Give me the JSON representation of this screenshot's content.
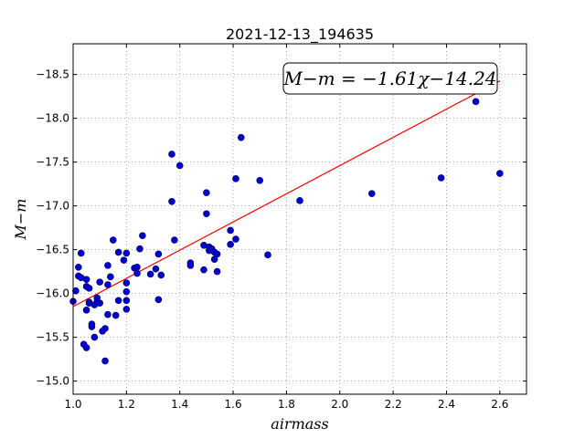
{
  "chart_data": {
    "type": "scatter",
    "title": "2021-12-13_194635",
    "xlabel": "airmass",
    "ylabel": "M−m",
    "xlim": [
      1.0,
      2.7
    ],
    "ylim": [
      -18.85,
      -14.85
    ],
    "y_inverted": true,
    "grid": true,
    "x_ticks": [
      "1.0",
      "1.2",
      "1.4",
      "1.6",
      "1.8",
      "2.0",
      "2.2",
      "2.4",
      "2.6"
    ],
    "y_ticks": [
      "−15.0",
      "−15.5",
      "−16.0",
      "−16.5",
      "−17.0",
      "−17.5",
      "−18.0",
      "−18.5"
    ],
    "annotation": "M−m = −1.61χ−14.24",
    "fit": {
      "slope": -1.61,
      "intercept": -14.24,
      "x_range": [
        1.0,
        2.6
      ],
      "color": "#ff0000"
    },
    "marker_color": "#0000cc",
    "points": [
      [
        1.0,
        -15.91
      ],
      [
        1.01,
        -16.03
      ],
      [
        1.02,
        -16.3
      ],
      [
        1.02,
        -16.2
      ],
      [
        1.03,
        -16.46
      ],
      [
        1.03,
        -16.18
      ],
      [
        1.04,
        -15.42
      ],
      [
        1.05,
        -15.38
      ],
      [
        1.05,
        -15.81
      ],
      [
        1.05,
        -16.16
      ],
      [
        1.05,
        -16.08
      ],
      [
        1.06,
        -15.9
      ],
      [
        1.06,
        -16.06
      ],
      [
        1.06,
        -15.89
      ],
      [
        1.07,
        -15.62
      ],
      [
        1.07,
        -15.65
      ],
      [
        1.08,
        -15.5
      ],
      [
        1.08,
        -15.87
      ],
      [
        1.09,
        -15.91
      ],
      [
        1.09,
        -15.95
      ],
      [
        1.1,
        -15.89
      ],
      [
        1.1,
        -16.13
      ],
      [
        1.11,
        -15.57
      ],
      [
        1.12,
        -15.6
      ],
      [
        1.12,
        -15.23
      ],
      [
        1.13,
        -15.76
      ],
      [
        1.13,
        -16.1
      ],
      [
        1.13,
        -16.32
      ],
      [
        1.14,
        -16.19
      ],
      [
        1.15,
        -16.61
      ],
      [
        1.16,
        -15.75
      ],
      [
        1.17,
        -15.92
      ],
      [
        1.17,
        -16.47
      ],
      [
        1.19,
        -16.38
      ],
      [
        1.2,
        -15.82
      ],
      [
        1.2,
        -15.92
      ],
      [
        1.2,
        -16.12
      ],
      [
        1.2,
        -16.02
      ],
      [
        1.2,
        -16.46
      ],
      [
        1.23,
        -16.29
      ],
      [
        1.24,
        -16.23
      ],
      [
        1.24,
        -16.3
      ],
      [
        1.25,
        -16.51
      ],
      [
        1.26,
        -16.66
      ],
      [
        1.29,
        -16.22
      ],
      [
        1.31,
        -16.28
      ],
      [
        1.32,
        -16.45
      ],
      [
        1.32,
        -15.93
      ],
      [
        1.33,
        -16.21
      ],
      [
        1.37,
        -17.05
      ],
      [
        1.37,
        -17.59
      ],
      [
        1.38,
        -16.61
      ],
      [
        1.4,
        -17.46
      ],
      [
        1.44,
        -16.35
      ],
      [
        1.44,
        -16.32
      ],
      [
        1.49,
        -16.55
      ],
      [
        1.49,
        -16.27
      ],
      [
        1.5,
        -16.91
      ],
      [
        1.5,
        -17.15
      ],
      [
        1.51,
        -16.49
      ],
      [
        1.51,
        -16.53
      ],
      [
        1.52,
        -16.51
      ],
      [
        1.53,
        -16.47
      ],
      [
        1.53,
        -16.39
      ],
      [
        1.54,
        -16.25
      ],
      [
        1.54,
        -16.45
      ],
      [
        1.59,
        -16.56
      ],
      [
        1.59,
        -16.72
      ],
      [
        1.61,
        -16.62
      ],
      [
        1.61,
        -17.31
      ],
      [
        1.63,
        -17.78
      ],
      [
        1.7,
        -17.29
      ],
      [
        1.73,
        -16.44
      ],
      [
        1.85,
        -17.06
      ],
      [
        2.12,
        -17.14
      ],
      [
        2.27,
        -18.36
      ],
      [
        2.38,
        -17.32
      ],
      [
        2.51,
        -18.19
      ],
      [
        2.6,
        -17.37
      ]
    ]
  }
}
